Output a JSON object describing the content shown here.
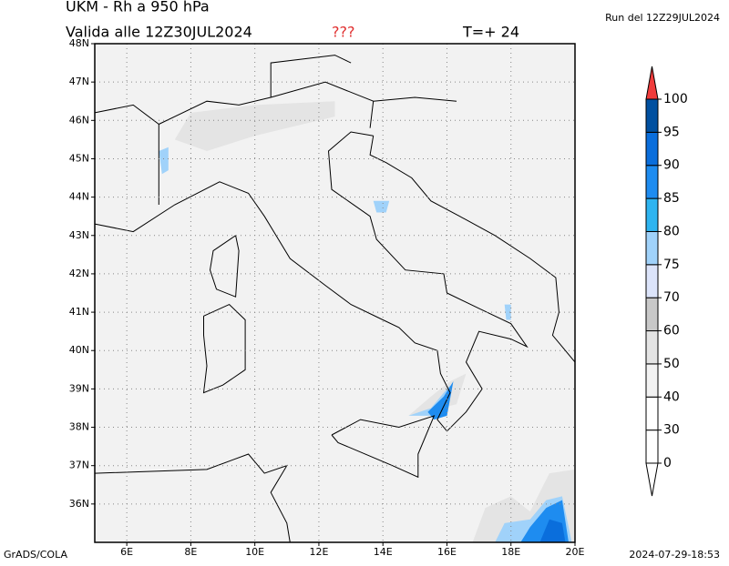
{
  "header": {
    "title": "UKM - Rh a 950 hPa",
    "valid": "Valida alle 12Z30JUL2024",
    "flag": "???",
    "step": "T=+ 24",
    "run": "Run del 12Z29JUL2024"
  },
  "map": {
    "lonlim": [
      5,
      20
    ],
    "latlim": [
      35,
      48
    ],
    "lat_ticks": [
      {
        "value": 48,
        "label": "48N"
      },
      {
        "value": 47,
        "label": "47N"
      },
      {
        "value": 46,
        "label": "46N"
      },
      {
        "value": 45,
        "label": "45N"
      },
      {
        "value": 44,
        "label": "44N"
      },
      {
        "value": 43,
        "label": "43N"
      },
      {
        "value": 42,
        "label": "42N"
      },
      {
        "value": 41,
        "label": "41N"
      },
      {
        "value": 40,
        "label": "40N"
      },
      {
        "value": 39,
        "label": "39N"
      },
      {
        "value": 38,
        "label": "38N"
      },
      {
        "value": 37,
        "label": "37N"
      },
      {
        "value": 36,
        "label": "36N"
      }
    ],
    "lon_ticks": [
      {
        "value": 6,
        "label": "6E"
      },
      {
        "value": 8,
        "label": "8E"
      },
      {
        "value": 10,
        "label": "10E"
      },
      {
        "value": 12,
        "label": "12E"
      },
      {
        "value": 14,
        "label": "14E"
      },
      {
        "value": 16,
        "label": "16E"
      },
      {
        "value": 18,
        "label": "18E"
      },
      {
        "value": 20,
        "label": "20E"
      }
    ]
  },
  "colorbar": {
    "levels": [
      0,
      30,
      40,
      50,
      60,
      70,
      75,
      80,
      85,
      90,
      95,
      100
    ],
    "colors": [
      "#ffffff",
      "#ffffff",
      "#f2f2f2",
      "#e4e4e4",
      "#c8c8c8",
      "#dce4fa",
      "#a0d2fa",
      "#2eb4f0",
      "#1e8cf0",
      "#0a6edc",
      "#0050a0"
    ],
    "over_color": "#f03c3c",
    "under_color": "#ffffff"
  },
  "footer": {
    "left": "GrADS/COLA",
    "right": "2024-07-29-18:53"
  }
}
